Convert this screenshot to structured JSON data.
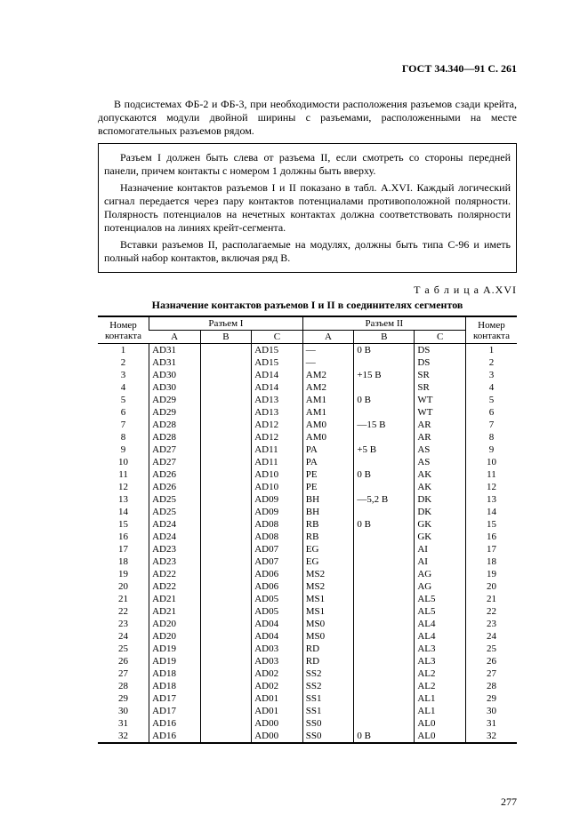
{
  "header": "ГОСТ 34.340—91 С. 261",
  "para1": "В подсистемах ФБ-2 и ФБ-3, при необходимости расположения разъемов сзади крейта, допускаются модули двойной ширины с разъемами, расположенными на месте вспомогательных разъемов рядом.",
  "boxed": {
    "p1": "Разъем I должен быть слева от разъема II, если смотреть со стороны передней панели, причем контакты с номером 1 должны быть вверху.",
    "p2": "Назначение контактов разъемов I и II показано в табл. A.XVI. Каждый логический сигнал передается через пару контактов потенциалами противоположной полярности. Полярность потенциалов на нечетных контактах должна соответствовать полярности потенциалов на линиях крейт-сегмента.",
    "p3": "Вставки разъемов II, располагаемые на модулях, должны быть типа C-96 и иметь полный набор контактов, включая ряд B."
  },
  "table_caption": "Т а б л и ц а   A.XVI",
  "table_title": "Назначение контактов разъемов I и II в соединителях сегментов",
  "colheads": {
    "num": "Номер контакта",
    "r1": "Разъем I",
    "r2": "Разъем II",
    "a": "A",
    "b": "B",
    "c": "C"
  },
  "rows": [
    {
      "n": 1,
      "ia": "AD31",
      "ib": "",
      "ic": "AD15",
      "iia": "—",
      "iib": "0 В",
      "iic": "DS"
    },
    {
      "n": 2,
      "ia": "AD31",
      "ib": "",
      "ic": "AD15",
      "iia": "—",
      "iib": "",
      "iic": "DS"
    },
    {
      "n": 3,
      "ia": "AD30",
      "ib": "",
      "ic": "AD14",
      "iia": "AM2",
      "iib": "+15 В",
      "iic": "SR"
    },
    {
      "n": 4,
      "ia": "AD30",
      "ib": "",
      "ic": "AD14",
      "iia": "AM2",
      "iib": "",
      "iic": "SR"
    },
    {
      "n": 5,
      "ia": "AD29",
      "ib": "",
      "ic": "AD13",
      "iia": "AM1",
      "iib": "0 В",
      "iic": "WT"
    },
    {
      "n": 6,
      "ia": "AD29",
      "ib": "",
      "ic": "AD13",
      "iia": "AM1",
      "iib": "",
      "iic": "WT"
    },
    {
      "n": 7,
      "ia": "AD28",
      "ib": "",
      "ic": "AD12",
      "iia": "AM0",
      "iib": "—15 В",
      "iic": "AR"
    },
    {
      "n": 8,
      "ia": "AD28",
      "ib": "",
      "ic": "AD12",
      "iia": "AM0",
      "iib": "",
      "iic": "AR"
    },
    {
      "n": 9,
      "ia": "AD27",
      "ib": "",
      "ic": "AD11",
      "iia": "PA",
      "iib": "+5 В",
      "iic": "AS"
    },
    {
      "n": 10,
      "ia": "AD27",
      "ib": "",
      "ic": "AD11",
      "iia": "PA",
      "iib": "",
      "iic": "AS"
    },
    {
      "n": 11,
      "ia": "AD26",
      "ib": "",
      "ic": "AD10",
      "iia": "PE",
      "iib": "0 В",
      "iic": "AK"
    },
    {
      "n": 12,
      "ia": "AD26",
      "ib": "",
      "ic": "AD10",
      "iia": "PE",
      "iib": "",
      "iic": "AK"
    },
    {
      "n": 13,
      "ia": "AD25",
      "ib": "",
      "ic": "AD09",
      "iia": "BH",
      "iib": "—5,2 В",
      "iic": "DK"
    },
    {
      "n": 14,
      "ia": "AD25",
      "ib": "",
      "ic": "AD09",
      "iia": "BH",
      "iib": "",
      "iic": "DK"
    },
    {
      "n": 15,
      "ia": "AD24",
      "ib": "",
      "ic": "AD08",
      "iia": "RB",
      "iib": "0 В",
      "iic": "GK"
    },
    {
      "n": 16,
      "ia": "AD24",
      "ib": "",
      "ic": "AD08",
      "iia": "RB",
      "iib": "",
      "iic": "GK"
    },
    {
      "n": 17,
      "ia": "AD23",
      "ib": "",
      "ic": "AD07",
      "iia": "EG",
      "iib": "",
      "iic": "AI"
    },
    {
      "n": 18,
      "ia": "AD23",
      "ib": "",
      "ic": "AD07",
      "iia": "EG",
      "iib": "",
      "iic": "AI"
    },
    {
      "n": 19,
      "ia": "AD22",
      "ib": "",
      "ic": "AD06",
      "iia": "MS2",
      "iib": "",
      "iic": "AG"
    },
    {
      "n": 20,
      "ia": "AD22",
      "ib": "",
      "ic": "AD06",
      "iia": "MS2",
      "iib": "",
      "iic": "AG"
    },
    {
      "n": 21,
      "ia": "AD21",
      "ib": "",
      "ic": "AD05",
      "iia": "MS1",
      "iib": "",
      "iic": "AL5"
    },
    {
      "n": 22,
      "ia": "AD21",
      "ib": "",
      "ic": "AD05",
      "iia": "MS1",
      "iib": "",
      "iic": "AL5"
    },
    {
      "n": 23,
      "ia": "AD20",
      "ib": "",
      "ic": "AD04",
      "iia": "MS0",
      "iib": "",
      "iic": "AL4"
    },
    {
      "n": 24,
      "ia": "AD20",
      "ib": "",
      "ic": "AD04",
      "iia": "MS0",
      "iib": "",
      "iic": "AL4"
    },
    {
      "n": 25,
      "ia": "AD19",
      "ib": "",
      "ic": "AD03",
      "iia": "RD",
      "iib": "",
      "iic": "AL3"
    },
    {
      "n": 26,
      "ia": "AD19",
      "ib": "",
      "ic": "AD03",
      "iia": "RD",
      "iib": "",
      "iic": "AL3"
    },
    {
      "n": 27,
      "ia": "AD18",
      "ib": "",
      "ic": "AD02",
      "iia": "SS2",
      "iib": "",
      "iic": "AL2"
    },
    {
      "n": 28,
      "ia": "AD18",
      "ib": "",
      "ic": "AD02",
      "iia": "SS2",
      "iib": "",
      "iic": "AL2"
    },
    {
      "n": 29,
      "ia": "AD17",
      "ib": "",
      "ic": "AD01",
      "iia": "SS1",
      "iib": "",
      "iic": "AL1"
    },
    {
      "n": 30,
      "ia": "AD17",
      "ib": "",
      "ic": "AD01",
      "iia": "SS1",
      "iib": "",
      "iic": "AL1"
    },
    {
      "n": 31,
      "ia": "AD16",
      "ib": "",
      "ic": "AD00",
      "iia": "SS0",
      "iib": "",
      "iic": "AL0"
    },
    {
      "n": 32,
      "ia": "AD16",
      "ib": "",
      "ic": "AD00",
      "iia": "SS0",
      "iib": "0 В",
      "iic": "AL0"
    }
  ],
  "page_num": "277"
}
